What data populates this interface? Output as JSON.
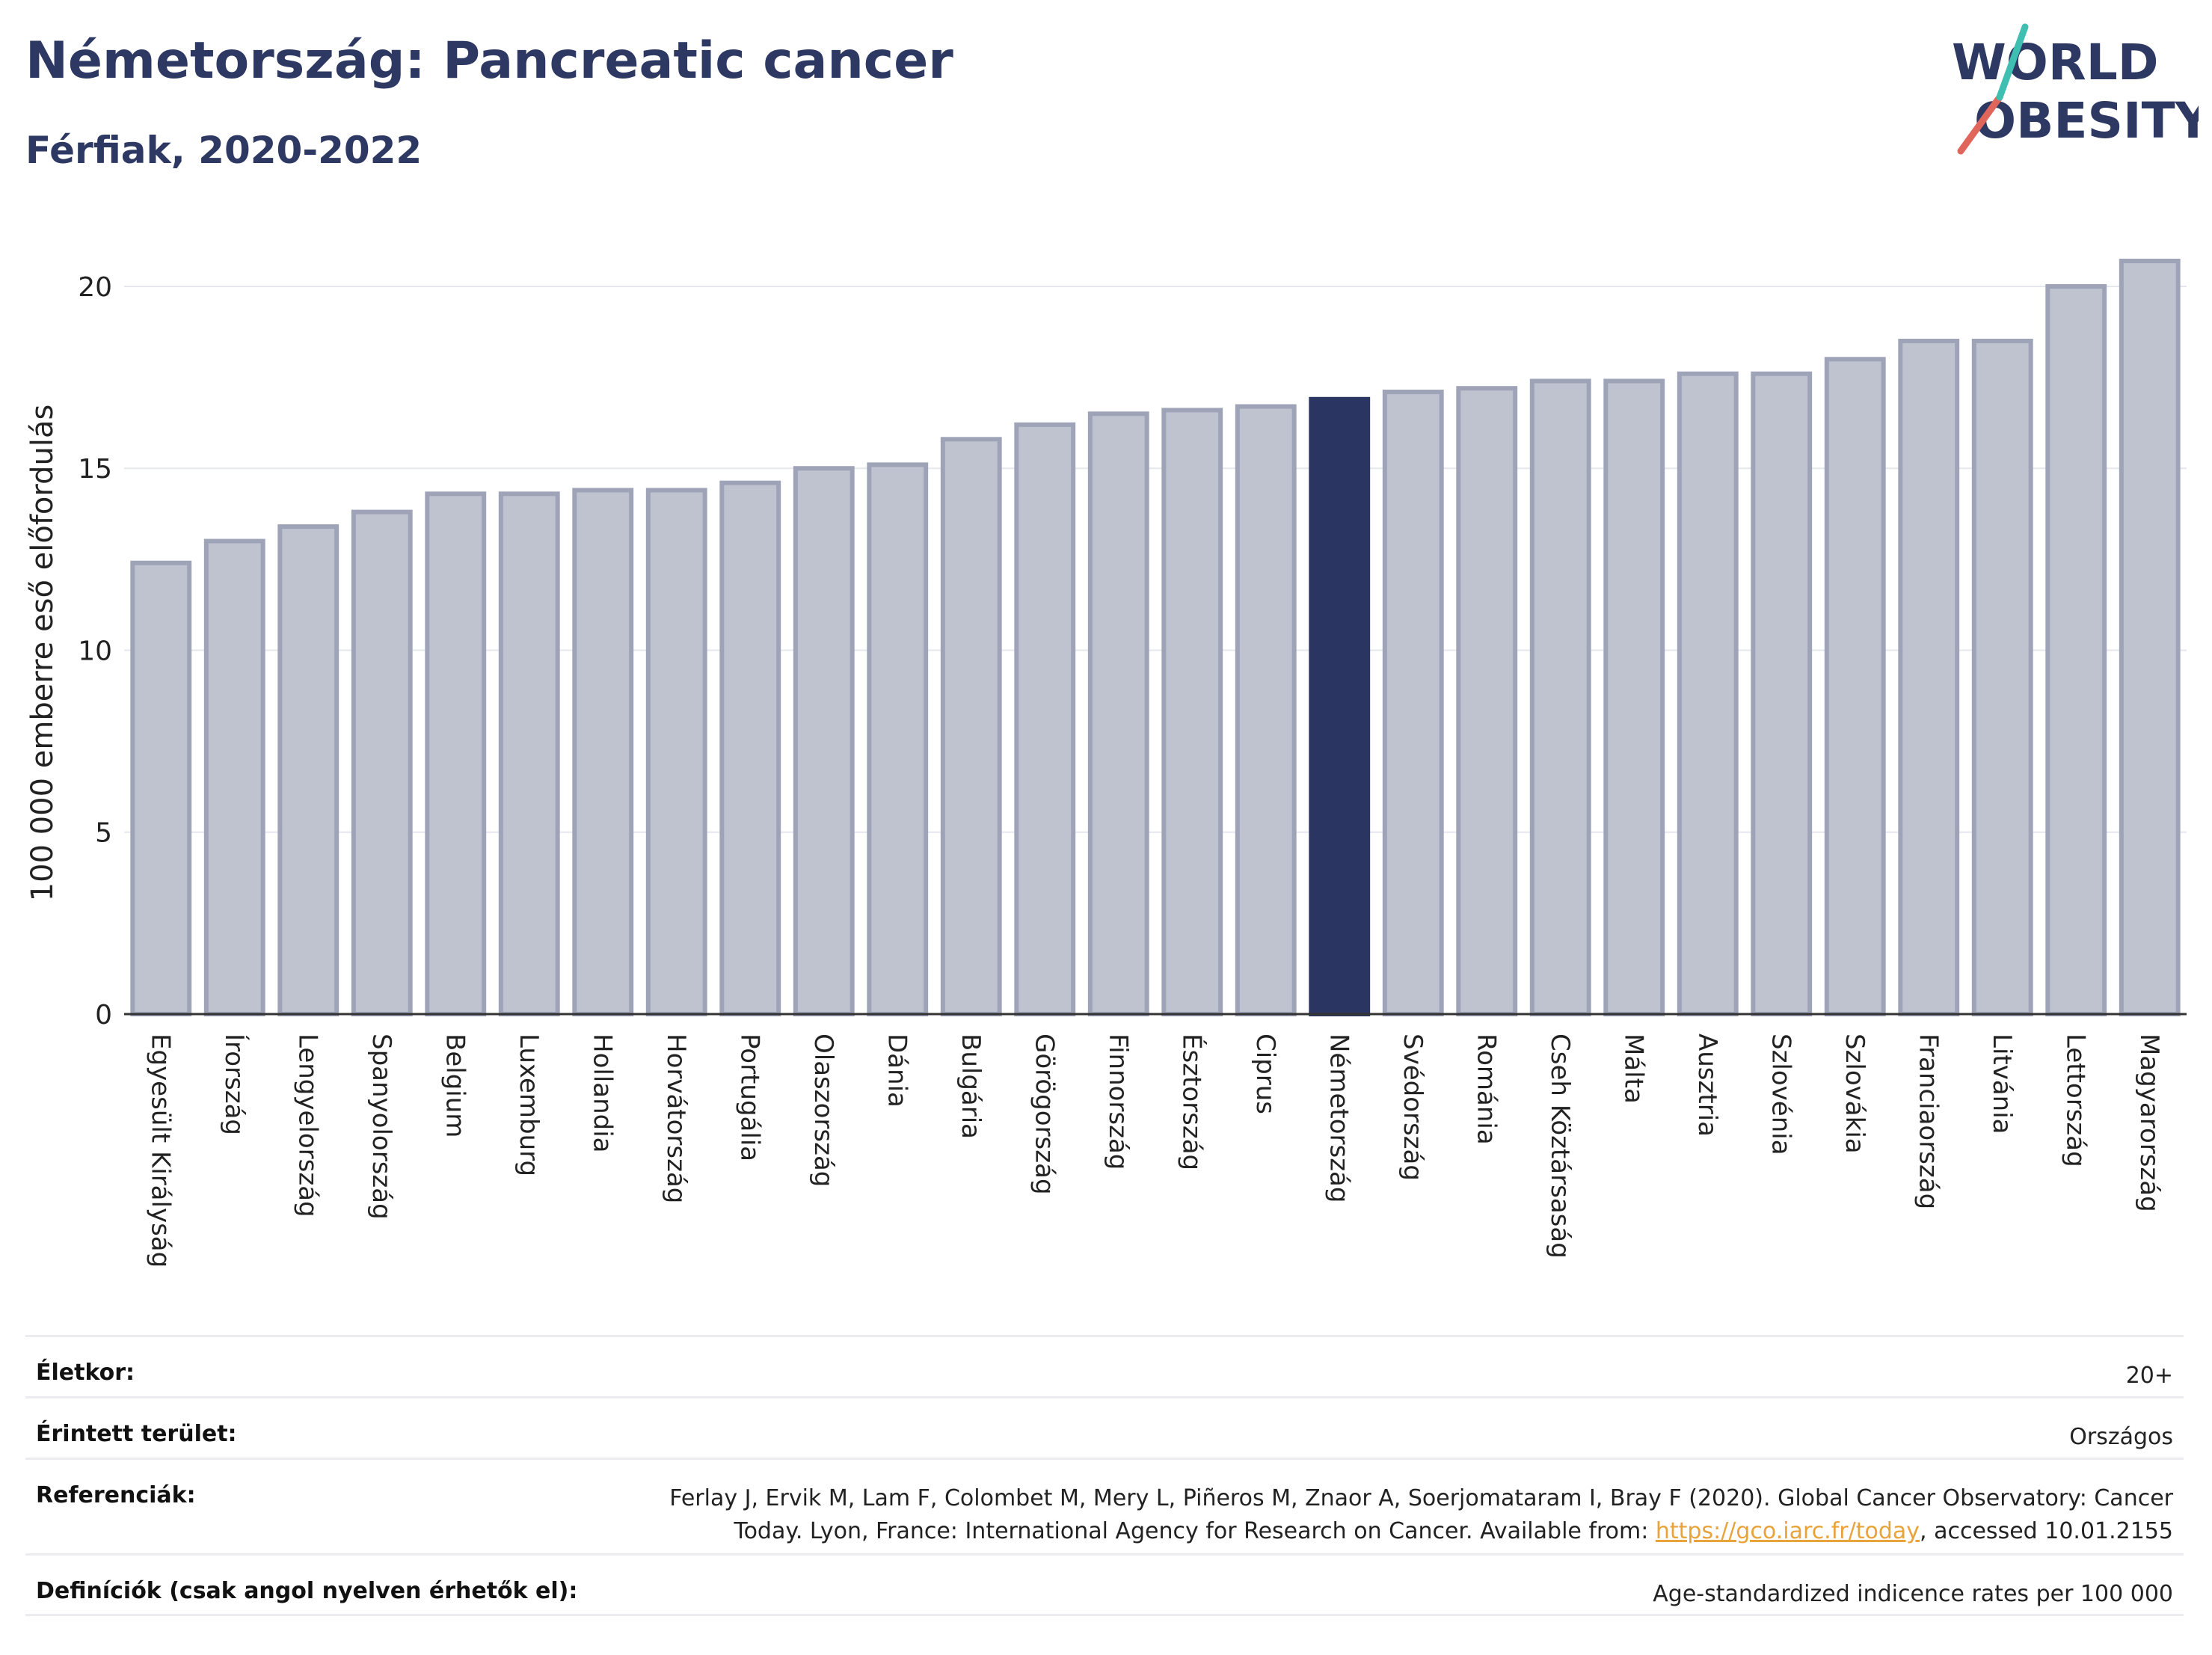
{
  "header": {
    "title": "Németország: Pancreatic cancer",
    "subtitle": "Férfiak, 2020-2022"
  },
  "logo": {
    "line1": "WORLD",
    "line2": "OBESITY",
    "colors": {
      "text": "#2d3863",
      "slash_red": "#e0655a",
      "slash_teal": "#3fbfb1"
    }
  },
  "chart_data": {
    "type": "bar",
    "ylabel": "100 000 emberre eső előfordulás",
    "xlabel": "",
    "ylim": [
      0,
      21.5
    ],
    "yticks": [
      0,
      5,
      10,
      15,
      20
    ],
    "grid": true,
    "highlight": "Németország",
    "colors": {
      "bar": "#bfc2cf",
      "bar_edge": "#9ea3b8",
      "highlight": "#2b3561"
    },
    "categories": [
      "Egyesült Királyság",
      "Írország",
      "Lengyelország",
      "Spanyolország",
      "Belgium",
      "Luxemburg",
      "Hollandia",
      "Horvátország",
      "Portugália",
      "Olaszország",
      "Dánia",
      "Bulgária",
      "Görögország",
      "Finnország",
      "Észtország",
      "Ciprus",
      "Németország",
      "Svédország",
      "Románia",
      "Cseh Köztársaság",
      "Málta",
      "Ausztria",
      "Szlovénia",
      "Szlovákia",
      "Franciaország",
      "Litvánia",
      "Lettország",
      "Magyarország"
    ],
    "values": [
      12.4,
      13.0,
      13.4,
      13.8,
      14.3,
      14.3,
      14.4,
      14.4,
      14.6,
      15.0,
      15.1,
      15.8,
      16.2,
      16.5,
      16.6,
      16.7,
      16.9,
      17.1,
      17.2,
      17.4,
      17.4,
      17.6,
      17.6,
      18.0,
      18.5,
      18.5,
      20.0,
      20.7
    ]
  },
  "meta": {
    "age_label": "Életkor:",
    "age_value": "20+",
    "area_label": "Érintett terület:",
    "area_value": "Országos",
    "ref_label": "Referenciák:",
    "ref_text_1": "Ferlay J, Ervik M, Lam F, Colombet M, Mery L, Piñeros M, Znaor A, Soerjomataram I, Bray F (2020). Global Cancer Observatory: Cancer",
    "ref_text_2": "Today. Lyon, France: International Agency for Research on Cancer. Available from: ",
    "ref_link": "https://gco.iarc.fr/today",
    "ref_text_3": ", accessed 10.01.2155",
    "def_label": "Definíciók (csak angol nyelven érhetők el):",
    "def_value": "Age-standardized indicence rates per 100 000"
  }
}
